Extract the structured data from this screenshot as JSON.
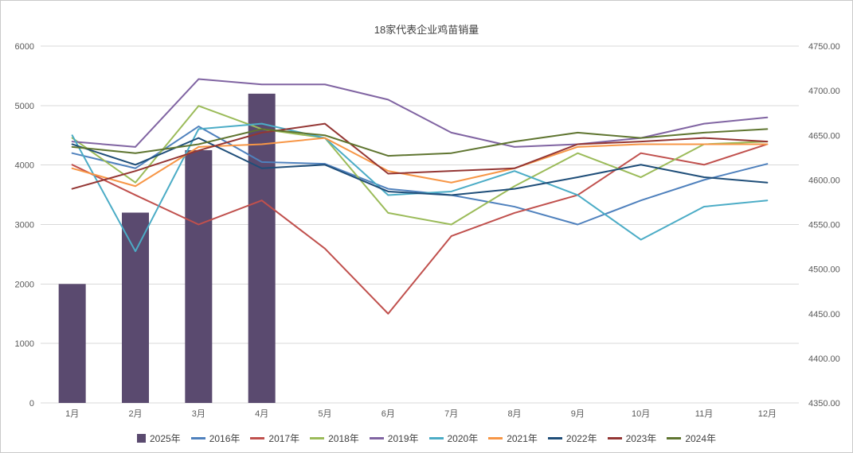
{
  "chart_data": {
    "type": "combo",
    "subtype": "bar+line",
    "title": "18家代表企业鸡苗销量",
    "categories": [
      "1月",
      "2月",
      "3月",
      "4月",
      "5月",
      "6月",
      "7月",
      "8月",
      "9月",
      "10月",
      "11月",
      "12月"
    ],
    "grid": true,
    "legend_position": "bottom",
    "left_axis": {
      "min": 0,
      "max": 6000,
      "step": 1000,
      "labels": [
        "0",
        "1000",
        "2000",
        "3000",
        "4000",
        "5000",
        "6000"
      ]
    },
    "right_axis": {
      "min": 4350,
      "max": 4750,
      "step": 50,
      "labels": [
        "4350.00",
        "4400.00",
        "4450.00",
        "4500.00",
        "4550.00",
        "4600.00",
        "4650.00",
        "4700.00",
        "4750.00"
      ]
    },
    "bar_series": {
      "name": "2025年",
      "color": "#5A4A6F",
      "axis": "left",
      "values": [
        2000,
        3200,
        4250,
        5200,
        null,
        null,
        null,
        null,
        null,
        null,
        null,
        null
      ]
    },
    "line_series": [
      {
        "name": "2016年",
        "color": "#4F81BD",
        "axis": "right",
        "values": [
          4630,
          4613,
          4660,
          4620,
          4618,
          4590,
          4583,
          4570,
          4550,
          4577,
          4600,
          4618
        ]
      },
      {
        "name": "2017年",
        "color": "#C0504D",
        "axis": "right",
        "values": [
          4617,
          4583,
          4550,
          4577,
          4523,
          4450,
          4537,
          4563,
          4583,
          4630,
          4617,
          4640
        ]
      },
      {
        "name": "2018年",
        "color": "#9BBB59",
        "axis": "right",
        "values": [
          4647,
          4597,
          4683,
          4657,
          4647,
          4563,
          4550,
          4593,
          4630,
          4603,
          4640,
          4643
        ]
      },
      {
        "name": "2019年",
        "color": "#8064A2",
        "axis": "right",
        "values": [
          4643,
          4637,
          4713,
          4707,
          4707,
          4690,
          4653,
          4637,
          4640,
          4647,
          4663,
          4670
        ]
      },
      {
        "name": "2020年",
        "color": "#4BACC6",
        "axis": "right",
        "values": [
          4650,
          4520,
          4657,
          4663,
          4647,
          4583,
          4587,
          4610,
          4583,
          4533,
          4570,
          4577
        ]
      },
      {
        "name": "2021年",
        "color": "#F79646",
        "axis": "right",
        "values": [
          4613,
          4593,
          4637,
          4640,
          4647,
          4610,
          4597,
          4613,
          4637,
          4640,
          4640,
          4640
        ]
      },
      {
        "name": "2022年",
        "color": "#1F4E79",
        "axis": "right",
        "values": [
          4640,
          4617,
          4647,
          4613,
          4617,
          4587,
          4583,
          4590,
          4603,
          4617,
          4603,
          4597
        ]
      },
      {
        "name": "2023年",
        "color": "#943634",
        "axis": "right",
        "values": [
          4590,
          4610,
          4633,
          4653,
          4663,
          4607,
          4610,
          4613,
          4640,
          4643,
          4647,
          4643
        ]
      },
      {
        "name": "2024年",
        "color": "#5F7530",
        "axis": "right",
        "values": [
          4637,
          4630,
          4640,
          4657,
          4650,
          4627,
          4630,
          4643,
          4653,
          4647,
          4653,
          4657
        ]
      }
    ],
    "style": {
      "gridline_color": "#D9D9D9",
      "axis_text_color": "#595959",
      "title_color": "#404040",
      "background": "#FFFFFF"
    }
  }
}
